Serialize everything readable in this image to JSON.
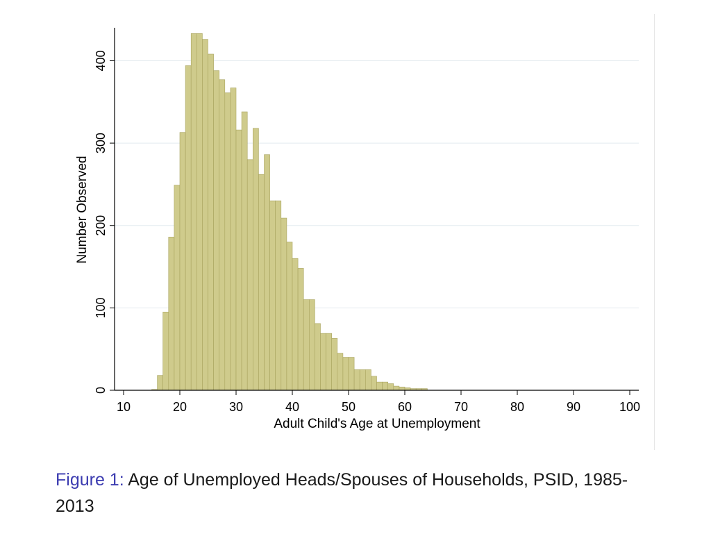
{
  "chart_data": {
    "type": "bar",
    "xlabel": "Adult Child's Age at Unemployment",
    "ylabel": "Number Observed",
    "xlim": [
      10,
      100
    ],
    "ylim": [
      0,
      440
    ],
    "xticks": [
      10,
      20,
      30,
      40,
      50,
      60,
      70,
      80,
      90,
      100
    ],
    "yticks": [
      0,
      100,
      200,
      300,
      400
    ],
    "grid": true,
    "bin_width": 1,
    "bar_color": "#cfcb8c",
    "bar_edge_color": "#a8a35e",
    "x": [
      15,
      16,
      17,
      18,
      19,
      20,
      21,
      22,
      23,
      24,
      25,
      26,
      27,
      28,
      29,
      30,
      31,
      32,
      33,
      34,
      35,
      36,
      37,
      38,
      39,
      40,
      41,
      42,
      43,
      44,
      45,
      46,
      47,
      48,
      49,
      50,
      51,
      52,
      53,
      54,
      55,
      56,
      57,
      58,
      59,
      60,
      61,
      62,
      63,
      64
    ],
    "values": [
      1,
      18,
      95,
      186,
      249,
      313,
      394,
      433,
      433,
      426,
      408,
      388,
      377,
      361,
      367,
      316,
      338,
      280,
      318,
      262,
      286,
      230,
      230,
      209,
      180,
      160,
      148,
      110,
      110,
      81,
      69,
      69,
      63,
      45,
      40,
      40,
      25,
      25,
      25,
      17,
      10,
      10,
      8,
      5,
      4,
      3,
      2,
      2,
      2,
      0
    ]
  },
  "caption": {
    "lead": "Figure 1:",
    "text": " Age of Unemployed Heads/Spouses of Households, PSID, 1985-2013"
  }
}
